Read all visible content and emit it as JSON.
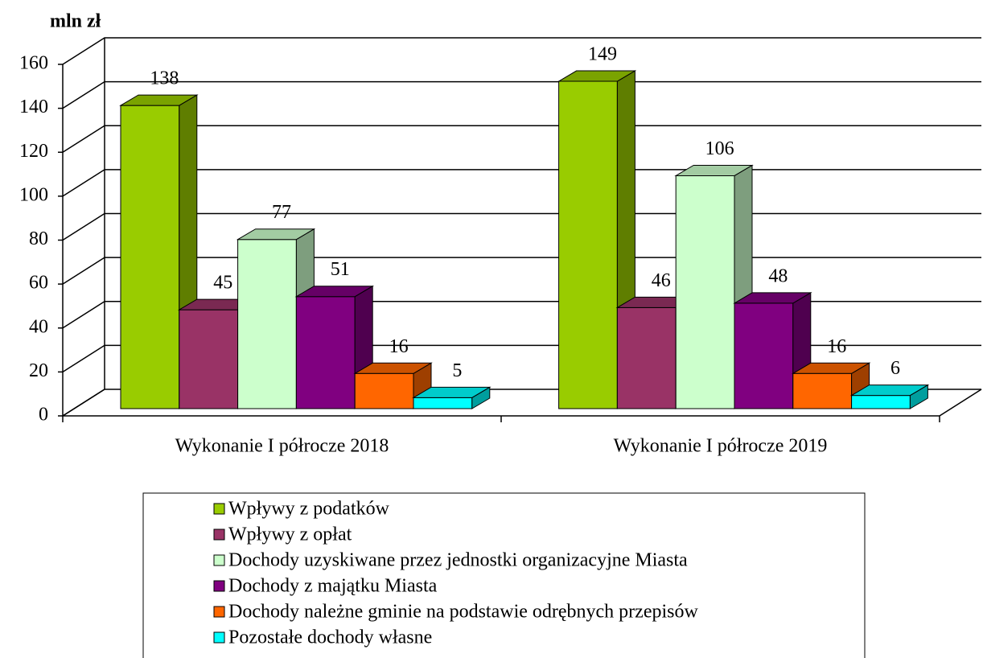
{
  "chart_data": {
    "type": "bar3d",
    "y_label": "mln zł",
    "categories": [
      "Wykonanie I półrocze 2018",
      "Wykonanie I półrocze 2019"
    ],
    "series": [
      {
        "name": "Wpływy z podatków",
        "color": "#99cc00",
        "values": [
          138,
          149
        ]
      },
      {
        "name": "Wpływy z opłat",
        "color": "#993366",
        "values": [
          45,
          46
        ]
      },
      {
        "name": "Dochody uzyskiwane przez jednostki organizacyjne Miasta",
        "color": "#ccffcc",
        "values": [
          77,
          106
        ]
      },
      {
        "name": "Dochody z majątku Miasta",
        "color": "#800080",
        "values": [
          51,
          48
        ]
      },
      {
        "name": "Dochody należne gminie na podstawie odrębnych przepisów",
        "color": "#ff6600",
        "values": [
          16,
          16
        ]
      },
      {
        "name": "Pozostałe dochody własne",
        "color": "#00ffff",
        "values": [
          5,
          6
        ]
      }
    ],
    "ylim": [
      0,
      160
    ],
    "yticks": [
      0,
      20,
      40,
      60,
      80,
      100,
      120,
      140,
      160
    ],
    "grid": true,
    "legend": "bottom"
  }
}
